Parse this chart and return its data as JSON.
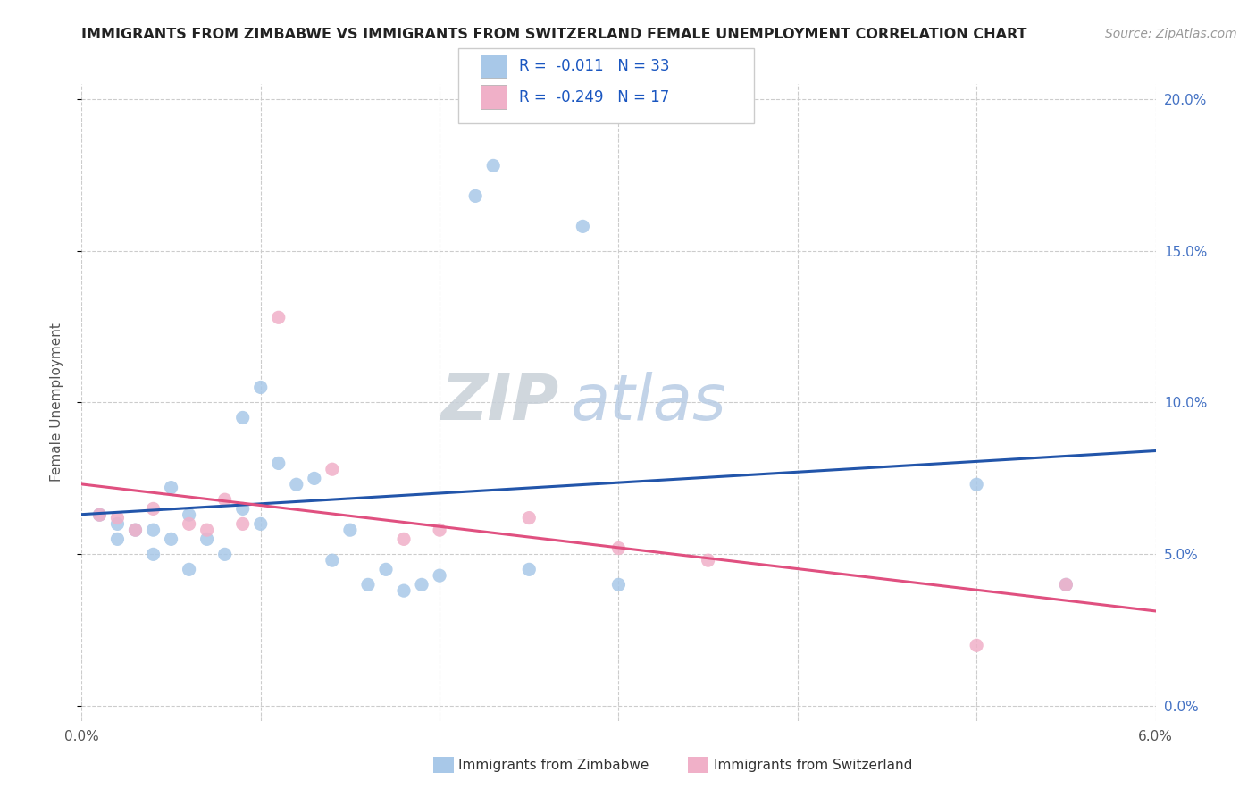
{
  "title": "IMMIGRANTS FROM ZIMBABWE VS IMMIGRANTS FROM SWITZERLAND FEMALE UNEMPLOYMENT CORRELATION CHART",
  "source": "Source: ZipAtlas.com",
  "ylabel": "Female Unemployment",
  "series": [
    {
      "name": "Immigrants from Zimbabwe",
      "color": "#a8c8e8",
      "line_color": "#2255aa",
      "R": -0.011,
      "N": 33,
      "x": [
        0.001,
        0.002,
        0.002,
        0.003,
        0.004,
        0.004,
        0.005,
        0.005,
        0.006,
        0.006,
        0.007,
        0.008,
        0.009,
        0.009,
        0.01,
        0.01,
        0.011,
        0.012,
        0.013,
        0.014,
        0.015,
        0.016,
        0.017,
        0.018,
        0.019,
        0.02,
        0.022,
        0.023,
        0.025,
        0.028,
        0.03,
        0.05,
        0.055
      ],
      "y": [
        0.063,
        0.06,
        0.055,
        0.058,
        0.05,
        0.058,
        0.072,
        0.055,
        0.063,
        0.045,
        0.055,
        0.05,
        0.095,
        0.065,
        0.105,
        0.06,
        0.08,
        0.073,
        0.075,
        0.048,
        0.058,
        0.04,
        0.045,
        0.038,
        0.04,
        0.043,
        0.168,
        0.178,
        0.045,
        0.158,
        0.04,
        0.073,
        0.04
      ]
    },
    {
      "name": "Immigrants from Switzerland",
      "color": "#f0b0c8",
      "line_color": "#e05080",
      "R": -0.249,
      "N": 17,
      "x": [
        0.001,
        0.002,
        0.003,
        0.004,
        0.006,
        0.007,
        0.008,
        0.009,
        0.011,
        0.014,
        0.018,
        0.02,
        0.025,
        0.03,
        0.035,
        0.05,
        0.055
      ],
      "y": [
        0.063,
        0.062,
        0.058,
        0.065,
        0.06,
        0.058,
        0.068,
        0.06,
        0.128,
        0.078,
        0.055,
        0.058,
        0.062,
        0.052,
        0.048,
        0.02,
        0.04
      ]
    }
  ],
  "xlim": [
    0.0,
    0.06
  ],
  "ylim": [
    -0.005,
    0.205
  ],
  "yticks": [
    0.0,
    0.05,
    0.1,
    0.15,
    0.2
  ],
  "ytick_labels_right": [
    "0.0%",
    "5.0%",
    "10.0%",
    "15.0%",
    "20.0%"
  ],
  "xtick_positions": [
    0.0,
    0.01,
    0.02,
    0.03,
    0.04,
    0.05,
    0.06
  ],
  "watermark_zip": "ZIP",
  "watermark_atlas": "atlas",
  "legend_R_color": "#1a56c0",
  "background_color": "#ffffff",
  "grid_color": "#cccccc",
  "title_color": "#222222",
  "title_fontsize": 11.5,
  "axis_label_color": "#4472c4",
  "dot_size": 120
}
